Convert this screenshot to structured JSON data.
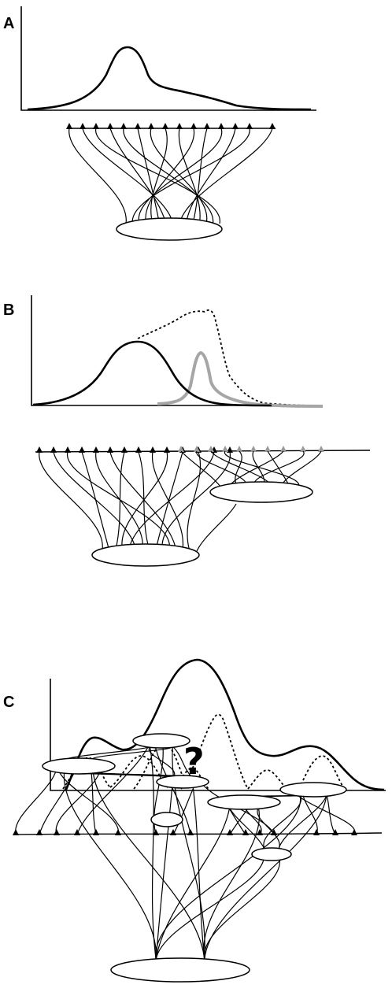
{
  "panels": [
    {
      "label": "A"
    },
    {
      "label": "B"
    },
    {
      "label": "C",
      "annotation": "?"
    }
  ],
  "colors": {
    "ink": "#000000",
    "gray_curve": "#a6a6a6",
    "background": "#ffffff"
  }
}
